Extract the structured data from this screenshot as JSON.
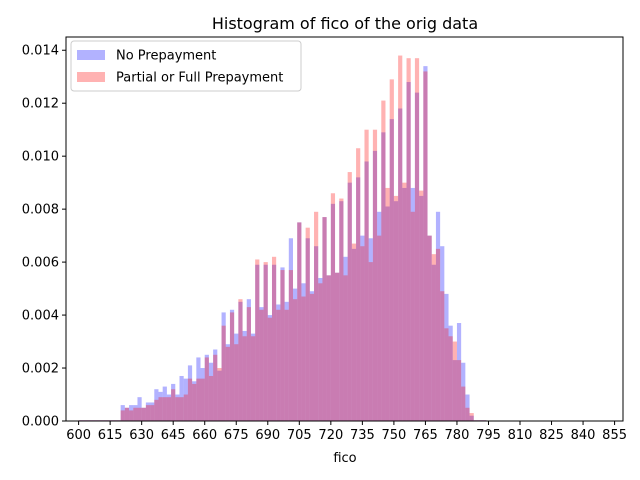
{
  "chart_data": {
    "type": "bar",
    "title": "Histogram of fico of the orig data",
    "xlabel": "fico",
    "ylabel": "",
    "xlim": [
      594,
      859
    ],
    "ylim": [
      0,
      0.0145
    ],
    "xticks": [
      600,
      615,
      630,
      645,
      660,
      675,
      690,
      705,
      720,
      735,
      750,
      765,
      780,
      795,
      810,
      825,
      840,
      855
    ],
    "yticks": [
      0.0,
      0.002,
      0.004,
      0.006,
      0.008,
      0.01,
      0.012,
      0.014
    ],
    "ytick_labels": [
      "0.000",
      "0.002",
      "0.004",
      "0.006",
      "0.008",
      "0.010",
      "0.012",
      "0.014"
    ],
    "xtick_labels": [
      "600",
      "615",
      "630",
      "645",
      "660",
      "675",
      "690",
      "705",
      "720",
      "735",
      "750",
      "765",
      "780",
      "795",
      "810",
      "825",
      "840",
      "855"
    ],
    "legend_position": "top-left",
    "bin_width": 2,
    "bin_start": 600,
    "series": [
      {
        "name": "No Prepayment",
        "color": "#0000ff",
        "alpha": 0.3,
        "values": [
          3e-05,
          3e-05,
          3e-05,
          3e-05,
          3e-05,
          3e-05,
          3e-05,
          3e-05,
          3e-05,
          3e-05,
          0.0006,
          0.0005,
          0.0006,
          0.0006,
          0.0009,
          0.0005,
          0.0007,
          0.0007,
          0.0012,
          0.0011,
          0.0013,
          0.001,
          0.0014,
          0.001,
          0.0017,
          0.0016,
          0.0021,
          0.0015,
          0.0024,
          0.002,
          0.0025,
          0.0022,
          0.0027,
          0.0019,
          0.0041,
          0.0029,
          0.0042,
          0.0033,
          0.0045,
          0.0034,
          0.0046,
          0.0033,
          0.0059,
          0.0043,
          0.0059,
          0.004,
          0.0059,
          0.0044,
          0.0058,
          0.0045,
          0.0069,
          0.005,
          0.0075,
          0.0052,
          0.0069,
          0.0049,
          0.0066,
          0.0054,
          0.0077,
          0.0055,
          0.0082,
          0.0056,
          0.0083,
          0.0062,
          0.009,
          0.0065,
          0.0092,
          0.007,
          0.0098,
          0.0069,
          0.0102,
          0.0079,
          0.0109,
          0.0081,
          0.0114,
          0.0083,
          0.0118,
          0.0088,
          0.0128,
          0.0088,
          0.0124,
          0.0085,
          0.0134,
          0.007,
          0.0059,
          0.0079,
          0.0066,
          0.0048,
          0.0036,
          0.0023,
          0.0037,
          0.0022,
          0.001,
          0.0002,
          3e-05,
          3e-05,
          3e-05
        ],
        "note_bin_count": 97
      },
      {
        "name": "Partial or Full Prepayment",
        "color": "#ff0000",
        "alpha": 0.3,
        "values": [
          3e-05,
          3e-05,
          3e-05,
          3e-05,
          3e-05,
          3e-05,
          3e-05,
          3e-05,
          3e-05,
          3e-05,
          0.0004,
          0.0005,
          0.0004,
          0.0005,
          0.0005,
          0.0005,
          0.0006,
          0.0006,
          0.0008,
          0.0009,
          0.0009,
          0.0009,
          0.0012,
          0.0009,
          0.0009,
          0.001,
          0.0016,
          0.0014,
          0.0016,
          0.0016,
          0.0024,
          0.0017,
          0.0025,
          0.002,
          0.0036,
          0.0028,
          0.0041,
          0.0029,
          0.0046,
          0.0032,
          0.0043,
          0.0032,
          0.0061,
          0.0042,
          0.006,
          0.0039,
          0.0062,
          0.0042,
          0.0057,
          0.0042,
          0.0057,
          0.0046,
          0.0075,
          0.0047,
          0.0073,
          0.0048,
          0.0079,
          0.0052,
          0.0077,
          0.0055,
          0.0086,
          0.0056,
          0.0084,
          0.0055,
          0.0094,
          0.0067,
          0.0103,
          0.0066,
          0.011,
          0.006,
          0.011,
          0.007,
          0.0121,
          0.0088,
          0.0129,
          0.0085,
          0.0138,
          0.009,
          0.0137,
          0.0079,
          0.0137,
          0.0087,
          0.0132,
          0.007,
          0.0063,
          0.0065,
          0.0049,
          0.0035,
          0.0032,
          0.003,
          0.0023,
          0.0013,
          0.0005,
          0.0003,
          3e-05,
          3e-05,
          3e-05
        ]
      }
    ],
    "overlap_color": "#c080c0"
  }
}
